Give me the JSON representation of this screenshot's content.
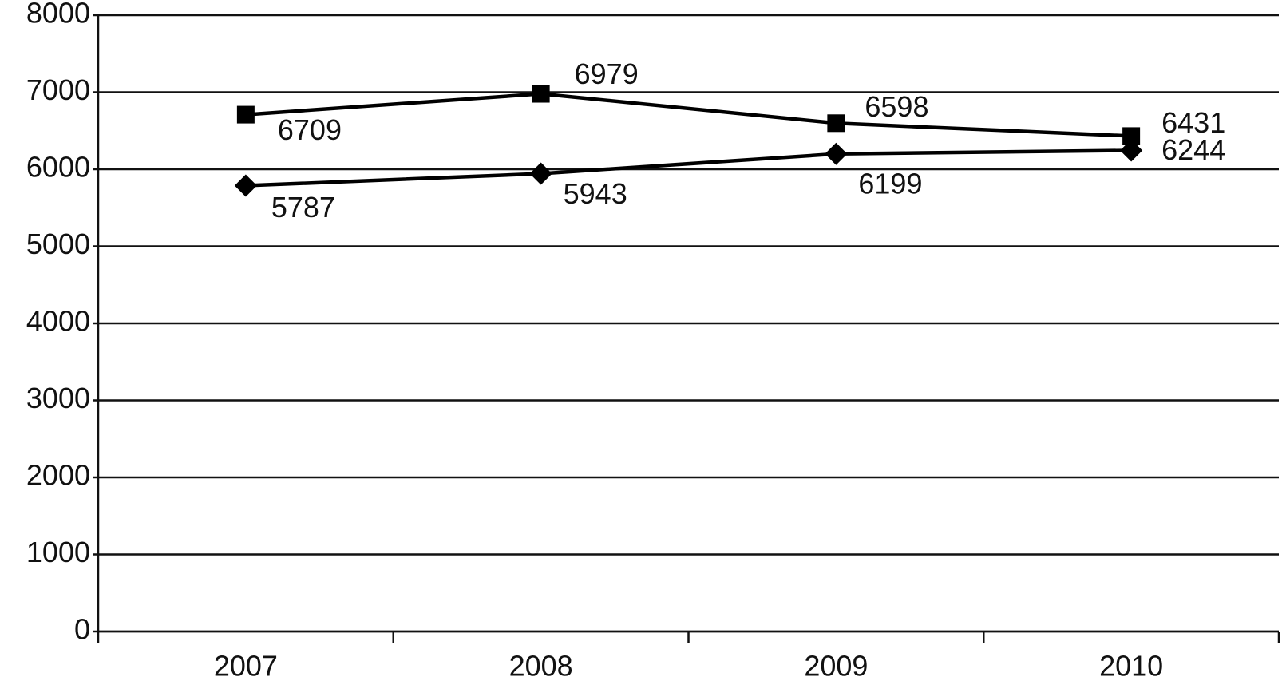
{
  "chart_data": {
    "type": "line",
    "categories": [
      "2007",
      "2008",
      "2009",
      "2010"
    ],
    "series": [
      {
        "color": "#000000",
        "marker": "square",
        "values": [
          6709,
          6979,
          6598,
          6431
        ]
      },
      {
        "color": "#000000",
        "marker": "diamond",
        "values": [
          5787,
          5943,
          6199,
          6244
        ]
      }
    ],
    "ylim": [
      0,
      8000
    ],
    "yticks": [
      0,
      1000,
      2000,
      3000,
      4000,
      5000,
      6000,
      7000,
      8000
    ],
    "grid": true,
    "data_labels": true
  }
}
